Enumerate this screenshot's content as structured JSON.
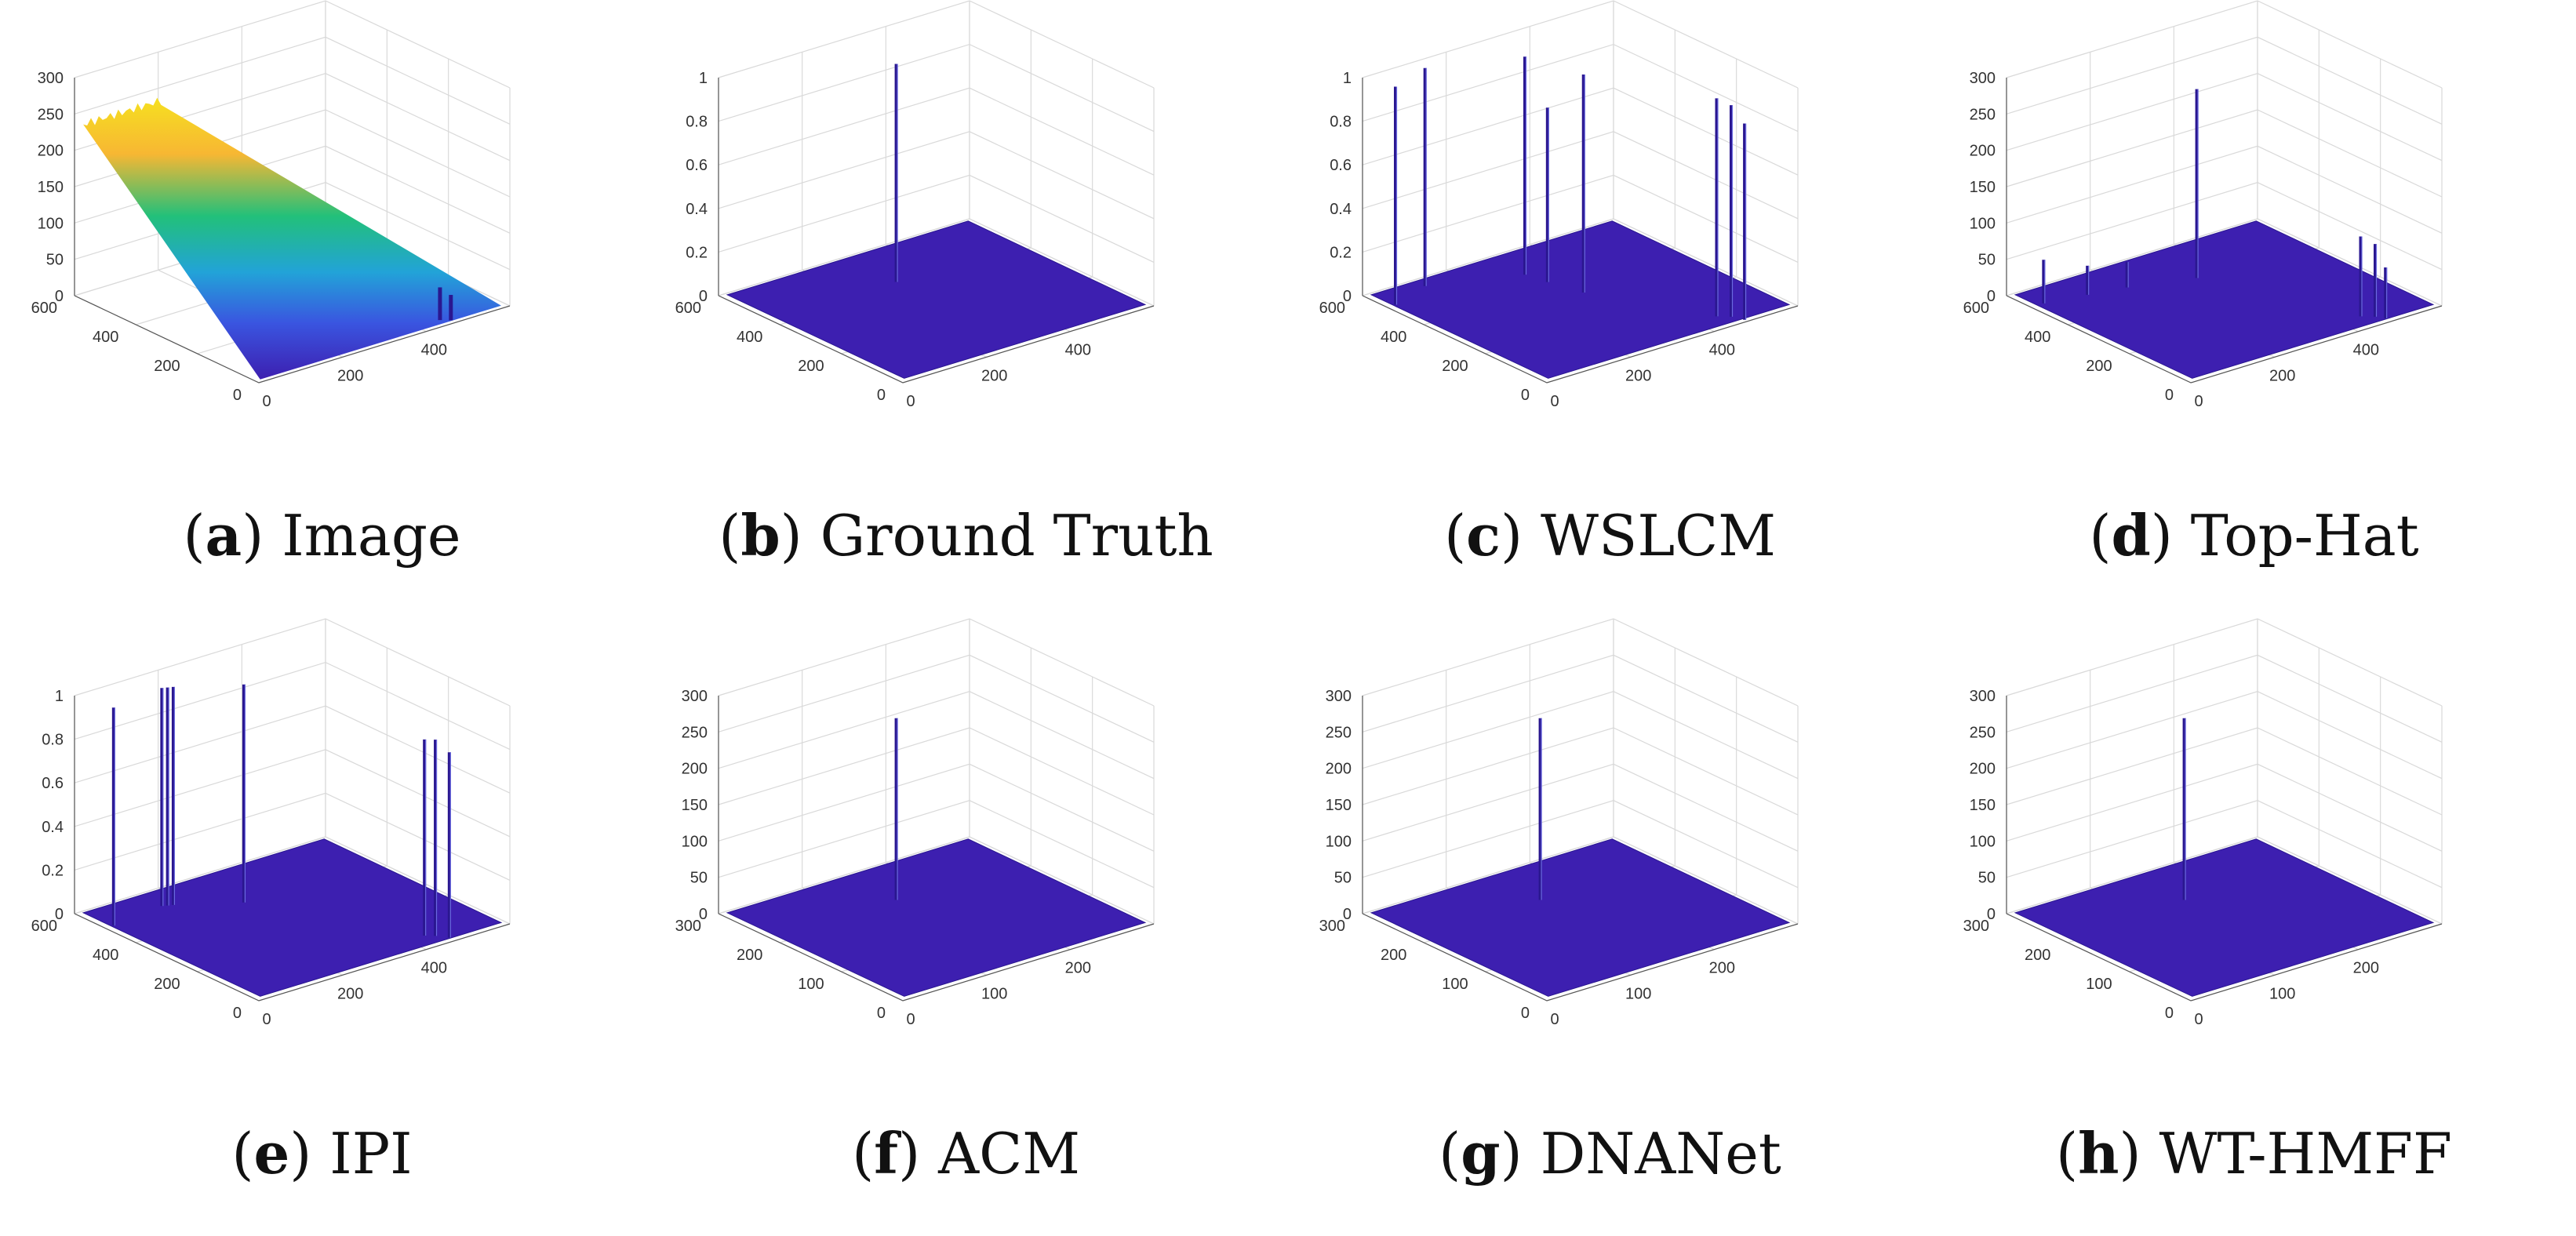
{
  "figure": {
    "panels": [
      {
        "letter": "a",
        "name": "Image"
      },
      {
        "letter": "b",
        "name": "Ground Truth"
      },
      {
        "letter": "c",
        "name": "WSLCM"
      },
      {
        "letter": "d",
        "name": "Top-Hat"
      },
      {
        "letter": "e",
        "name": "IPI"
      },
      {
        "letter": "f",
        "name": "ACM"
      },
      {
        "letter": "g",
        "name": "DNANet"
      },
      {
        "letter": "h",
        "name": "WT-HMFF"
      }
    ]
  },
  "colors": {
    "surface_base": "#3d1fb0",
    "surface_edge": "#2a1790",
    "yellow": "#f6e020",
    "orange": "#f7b733",
    "green": "#22c07a",
    "cyan": "#22a3d8",
    "blue": "#3a55e0",
    "grid": "#d9d9d9",
    "axis": "#555555"
  },
  "chart_data": [
    {
      "type": "surface3d",
      "panel": "a",
      "title": "Image",
      "z_ticks": [
        "0",
        "50",
        "100",
        "150",
        "200",
        "250",
        "300"
      ],
      "zlim": [
        0,
        300
      ],
      "x_ticks": [
        "0",
        "200",
        "400"
      ],
      "y_ticks": [
        "0",
        "200",
        "400",
        "600"
      ],
      "xlim": [
        0,
        600
      ],
      "ylim": [
        0,
        600
      ],
      "description_values": {
        "background_high": 230,
        "background_low": 0
      },
      "peaks": [
        {
          "x": 455,
          "y": 30,
          "z": 45
        },
        {
          "x": 470,
          "y": 15,
          "z": 35
        }
      ]
    },
    {
      "type": "surface3d",
      "panel": "b",
      "title": "Ground Truth",
      "z_ticks": [
        "0",
        "0.2",
        "0.4",
        "0.6",
        "0.8",
        "1"
      ],
      "zlim": [
        0,
        1
      ],
      "x_ticks": [
        "0",
        "200",
        "400"
      ],
      "y_ticks": [
        "0",
        "200",
        "400",
        "600"
      ],
      "xlim": [
        0,
        600
      ],
      "ylim": [
        0,
        600
      ],
      "peaks": [
        {
          "x": 300,
          "y": 430,
          "z": 1
        }
      ]
    },
    {
      "type": "surface3d",
      "panel": "c",
      "title": "WSLCM",
      "z_ticks": [
        "0",
        "0.2",
        "0.4",
        "0.6",
        "0.8",
        "1"
      ],
      "zlim": [
        0,
        1
      ],
      "x_ticks": [
        "0",
        "200",
        "400"
      ],
      "y_ticks": [
        "0",
        "200",
        "400",
        "600"
      ],
      "xlim": [
        0,
        600
      ],
      "ylim": [
        0,
        600
      ],
      "peaks": [
        {
          "x": 20,
          "y": 520,
          "z": 1
        },
        {
          "x": 120,
          "y": 560,
          "z": 1
        },
        {
          "x": 300,
          "y": 480,
          "z": 1
        },
        {
          "x": 310,
          "y": 420,
          "z": 0.8
        },
        {
          "x": 330,
          "y": 330,
          "z": 1
        },
        {
          "x": 450,
          "y": 60,
          "z": 1
        },
        {
          "x": 470,
          "y": 40,
          "z": 0.97
        },
        {
          "x": 480,
          "y": 10,
          "z": 0.9
        }
      ]
    },
    {
      "type": "surface3d",
      "panel": "d",
      "title": "Top-Hat",
      "z_ticks": [
        "0",
        "50",
        "100",
        "150",
        "200",
        "250",
        "300"
      ],
      "zlim": [
        0,
        300
      ],
      "x_ticks": [
        "0",
        "200",
        "400"
      ],
      "y_ticks": [
        "0",
        "200",
        "400",
        "600"
      ],
      "xlim": [
        0,
        600
      ],
      "ylim": [
        0,
        600
      ],
      "peaks": [
        {
          "x": 30,
          "y": 520,
          "z": 60
        },
        {
          "x": 120,
          "y": 500,
          "z": 40
        },
        {
          "x": 200,
          "y": 480,
          "z": 35
        },
        {
          "x": 330,
          "y": 430,
          "z": 260
        },
        {
          "x": 450,
          "y": 60,
          "z": 110
        },
        {
          "x": 470,
          "y": 40,
          "z": 100
        },
        {
          "x": 480,
          "y": 20,
          "z": 70
        }
      ]
    },
    {
      "type": "surface3d",
      "panel": "e",
      "title": "IPI",
      "z_ticks": [
        "0",
        "0.2",
        "0.4",
        "0.6",
        "0.8",
        "1"
      ],
      "zlim": [
        0,
        1
      ],
      "x_ticks": [
        "0",
        "200",
        "400"
      ],
      "y_ticks": [
        "0",
        "200",
        "400",
        "600"
      ],
      "xlim": [
        0,
        600
      ],
      "ylim": [
        0,
        600
      ],
      "peaks": [
        {
          "x": 20,
          "y": 500,
          "z": 1
        },
        {
          "x": 150,
          "y": 520,
          "z": 1
        },
        {
          "x": 160,
          "y": 515,
          "z": 1
        },
        {
          "x": 170,
          "y": 510,
          "z": 1
        },
        {
          "x": 280,
          "y": 430,
          "z": 1
        },
        {
          "x": 440,
          "y": 60,
          "z": 0.9
        },
        {
          "x": 455,
          "y": 45,
          "z": 0.9
        },
        {
          "x": 470,
          "y": 20,
          "z": 0.85
        }
      ]
    },
    {
      "type": "surface3d",
      "panel": "f",
      "title": "ACM",
      "z_ticks": [
        "0",
        "50",
        "100",
        "150",
        "200",
        "250",
        "300"
      ],
      "zlim": [
        0,
        300
      ],
      "x_ticks": [
        "0",
        "100",
        "200"
      ],
      "y_ticks": [
        "0",
        "100",
        "200",
        "300"
      ],
      "xlim": [
        0,
        300
      ],
      "ylim": [
        0,
        300
      ],
      "peaks": [
        {
          "x": 150,
          "y": 215,
          "z": 250
        }
      ]
    },
    {
      "type": "surface3d",
      "panel": "g",
      "title": "DNANet",
      "z_ticks": [
        "0",
        "50",
        "100",
        "150",
        "200",
        "250",
        "300"
      ],
      "zlim": [
        0,
        300
      ],
      "x_ticks": [
        "0",
        "100",
        "200"
      ],
      "y_ticks": [
        "0",
        "100",
        "200",
        "300"
      ],
      "xlim": [
        0,
        300
      ],
      "ylim": [
        0,
        300
      ],
      "peaks": [
        {
          "x": 150,
          "y": 215,
          "z": 250
        }
      ]
    },
    {
      "type": "surface3d",
      "panel": "h",
      "title": "WT-HMFF",
      "z_ticks": [
        "0",
        "50",
        "100",
        "150",
        "200",
        "250",
        "300"
      ],
      "zlim": [
        0,
        300
      ],
      "x_ticks": [
        "0",
        "100",
        "200"
      ],
      "y_ticks": [
        "0",
        "100",
        "200",
        "300"
      ],
      "xlim": [
        0,
        300
      ],
      "ylim": [
        0,
        300
      ],
      "peaks": [
        {
          "x": 150,
          "y": 215,
          "z": 250
        }
      ]
    }
  ]
}
